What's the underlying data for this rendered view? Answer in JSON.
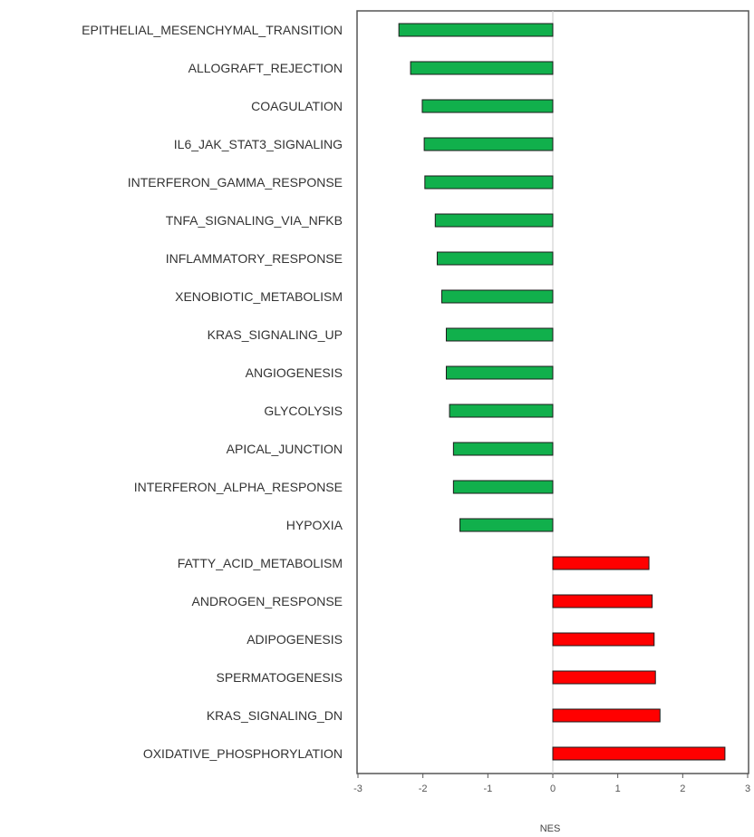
{
  "chart_data": {
    "type": "bar",
    "orientation": "horizontal",
    "title": "",
    "xlabel": "NES",
    "ylabel": "",
    "xlim": [
      -3,
      3
    ],
    "xticks": [
      -3,
      -2,
      -1,
      0,
      1,
      2,
      3
    ],
    "grid": false,
    "legend": "none",
    "colors": {
      "negative": "#11b04c",
      "positive": "#ff0000",
      "bar_edge": "#1a1a1a",
      "axis": "#555555",
      "zero_line": "#c8c8c8"
    },
    "categories": [
      "EPITHELIAL_MESENCHYMAL_TRANSITION",
      "ALLOGRAFT_REJECTION",
      "COAGULATION",
      "IL6_JAK_STAT3_SIGNALING",
      "INTERFERON_GAMMA_RESPONSE",
      "TNFA_SIGNALING_VIA_NFKB",
      "INFLAMMATORY_RESPONSE",
      "XENOBIOTIC_METABOLISM",
      "KRAS_SIGNALING_UP",
      "ANGIOGENESIS",
      "GLYCOLYSIS",
      "APICAL_JUNCTION",
      "INTERFERON_ALPHA_RESPONSE",
      "HYPOXIA",
      "FATTY_ACID_METABOLISM",
      "ANDROGEN_RESPONSE",
      "ADIPOGENESIS",
      "SPERMATOGENESIS",
      "KRAS_SIGNALING_DN",
      "OXIDATIVE_PHOSPHORYLATION"
    ],
    "values": [
      -2.37,
      -2.19,
      -2.01,
      -1.98,
      -1.97,
      -1.81,
      -1.78,
      -1.71,
      -1.64,
      -1.64,
      -1.59,
      -1.53,
      -1.53,
      -1.43,
      1.48,
      1.53,
      1.56,
      1.58,
      1.65,
      2.65
    ]
  }
}
